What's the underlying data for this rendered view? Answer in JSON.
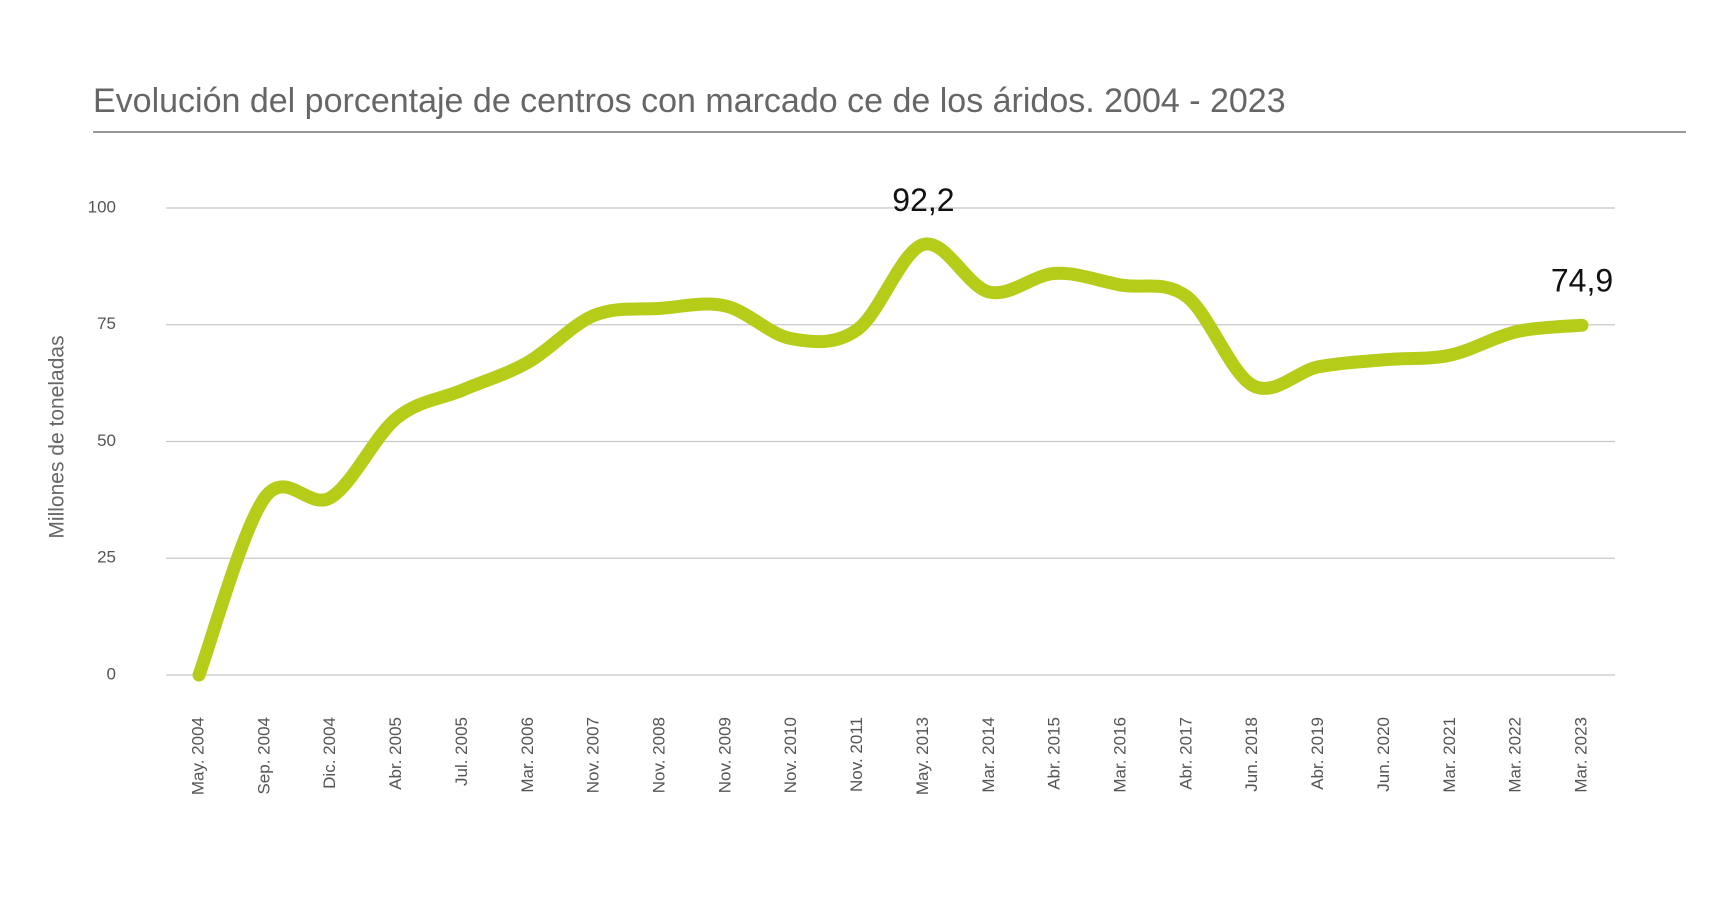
{
  "chart_data": {
    "type": "line",
    "title": "Evolución del porcentaje de centros con marcado ce de los áridos. 2004 - 2023",
    "y_label": "Millones de toneladas",
    "categories": [
      "May. 2004",
      "Sep. 2004",
      "Dic. 2004",
      "Abr. 2005",
      "Jul. 2005",
      "Mar. 2006",
      "Nov. 2007",
      "Nov. 2008",
      "Nov. 2009",
      "Nov. 2010",
      "Nov. 2011",
      "May. 2013",
      "Mar. 2014",
      "Abr. 2015",
      "Mar. 2016",
      "Abr. 2017",
      "Jun. 2018",
      "Abr. 2019",
      "Jun. 2020",
      "Mar. 2021",
      "Mar. 2022",
      "Mar. 2023"
    ],
    "values": [
      0,
      38,
      38,
      55,
      61,
      67,
      77,
      78.5,
      79,
      72,
      74,
      92.2,
      82,
      86,
      83.5,
      81,
      62,
      66,
      67.5,
      68.5,
      73.5,
      74.9
    ],
    "value_labels": [
      null,
      null,
      null,
      null,
      null,
      null,
      null,
      null,
      null,
      null,
      null,
      "92,2",
      null,
      null,
      null,
      null,
      null,
      null,
      null,
      null,
      null,
      "74,9"
    ],
    "color": "#b5cc18",
    "ylim": [
      0,
      100
    ],
    "yticks": [
      0,
      25,
      50,
      75,
      100
    ],
    "grid": true
  }
}
